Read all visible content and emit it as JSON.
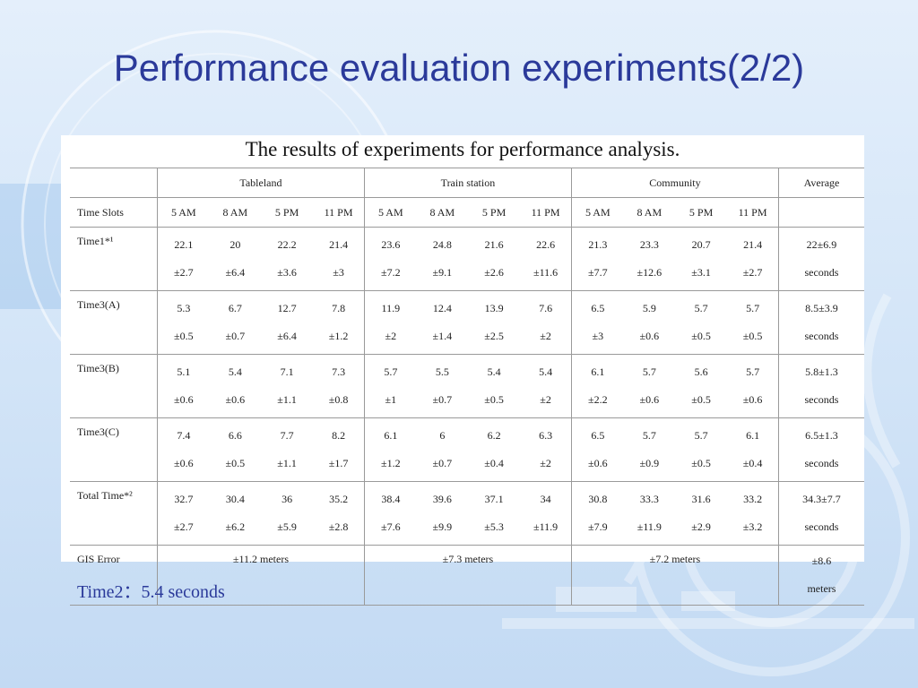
{
  "title": "Performance evaluation experiments(2/2)",
  "table": {
    "caption": "The results of experiments for performance analysis.",
    "groups": [
      "Tableland",
      "Train station",
      "Community"
    ],
    "average_header": "Average",
    "slots_header": "Time Slots",
    "slots": [
      "5 AM",
      "8 AM",
      "5 PM",
      "11 PM",
      "5 AM",
      "8 AM",
      "5 PM",
      "11 PM",
      "5 AM",
      "8 AM",
      "5 PM",
      "11 PM"
    ],
    "rows": [
      {
        "label": "Time1*¹",
        "cells": [
          [
            "22.1",
            "±2.7"
          ],
          [
            "20",
            "±6.4"
          ],
          [
            "22.2",
            "±3.6"
          ],
          [
            "21.4",
            "±3"
          ],
          [
            "23.6",
            "±7.2"
          ],
          [
            "24.8",
            "±9.1"
          ],
          [
            "21.6",
            "±2.6"
          ],
          [
            "22.6",
            "±11.6"
          ],
          [
            "21.3",
            "±7.7"
          ],
          [
            "23.3",
            "±12.6"
          ],
          [
            "20.7",
            "±3.1"
          ],
          [
            "21.4",
            "±2.7"
          ]
        ],
        "average": [
          "22±6.9",
          "seconds"
        ]
      },
      {
        "label": "Time3(A)",
        "cells": [
          [
            "5.3",
            "±0.5"
          ],
          [
            "6.7",
            "±0.7"
          ],
          [
            "12.7",
            "±6.4"
          ],
          [
            "7.8",
            "±1.2"
          ],
          [
            "11.9",
            "±2"
          ],
          [
            "12.4",
            "±1.4"
          ],
          [
            "13.9",
            "±2.5"
          ],
          [
            "7.6",
            "±2"
          ],
          [
            "6.5",
            "±3"
          ],
          [
            "5.9",
            "±0.6"
          ],
          [
            "5.7",
            "±0.5"
          ],
          [
            "5.7",
            "±0.5"
          ]
        ],
        "average": [
          "8.5±3.9",
          "seconds"
        ]
      },
      {
        "label": "Time3(B)",
        "cells": [
          [
            "5.1",
            "±0.6"
          ],
          [
            "5.4",
            "±0.6"
          ],
          [
            "7.1",
            "±1.1"
          ],
          [
            "7.3",
            "±0.8"
          ],
          [
            "5.7",
            "±1"
          ],
          [
            "5.5",
            "±0.7"
          ],
          [
            "5.4",
            "±0.5"
          ],
          [
            "5.4",
            "±2"
          ],
          [
            "6.1",
            "±2.2"
          ],
          [
            "5.7",
            "±0.6"
          ],
          [
            "5.6",
            "±0.5"
          ],
          [
            "5.7",
            "±0.6"
          ]
        ],
        "average": [
          "5.8±1.3",
          "seconds"
        ]
      },
      {
        "label": "Time3(C)",
        "cells": [
          [
            "7.4",
            "±0.6"
          ],
          [
            "6.6",
            "±0.5"
          ],
          [
            "7.7",
            "±1.1"
          ],
          [
            "8.2",
            "±1.7"
          ],
          [
            "6.1",
            "±1.2"
          ],
          [
            "6",
            "±0.7"
          ],
          [
            "6.2",
            "±0.4"
          ],
          [
            "6.3",
            "±2"
          ],
          [
            "6.5",
            "±0.6"
          ],
          [
            "5.7",
            "±0.9"
          ],
          [
            "5.7",
            "±0.5"
          ],
          [
            "6.1",
            "±0.4"
          ]
        ],
        "average": [
          "6.5±1.3",
          "seconds"
        ]
      },
      {
        "label": "Total Time*²",
        "cells": [
          [
            "32.7",
            "±2.7"
          ],
          [
            "30.4",
            "±6.2"
          ],
          [
            "36",
            "±5.9"
          ],
          [
            "35.2",
            "±2.8"
          ],
          [
            "38.4",
            "±7.6"
          ],
          [
            "39.6",
            "±9.9"
          ],
          [
            "37.1",
            "±5.3"
          ],
          [
            "34",
            "±11.9"
          ],
          [
            "30.8",
            "±7.9"
          ],
          [
            "33.3",
            "±11.9"
          ],
          [
            "31.6",
            "±2.9"
          ],
          [
            "33.2",
            "±3.2"
          ]
        ],
        "average": [
          "34.3±7.7",
          "seconds"
        ]
      }
    ],
    "gis": {
      "label": "GIS Error",
      "values": [
        "±11.2 meters",
        "±7.3 meters",
        "±7.2 meters"
      ],
      "average": [
        "±8.6",
        "meters"
      ]
    }
  },
  "footnote": "Time2：5.4 seconds"
}
